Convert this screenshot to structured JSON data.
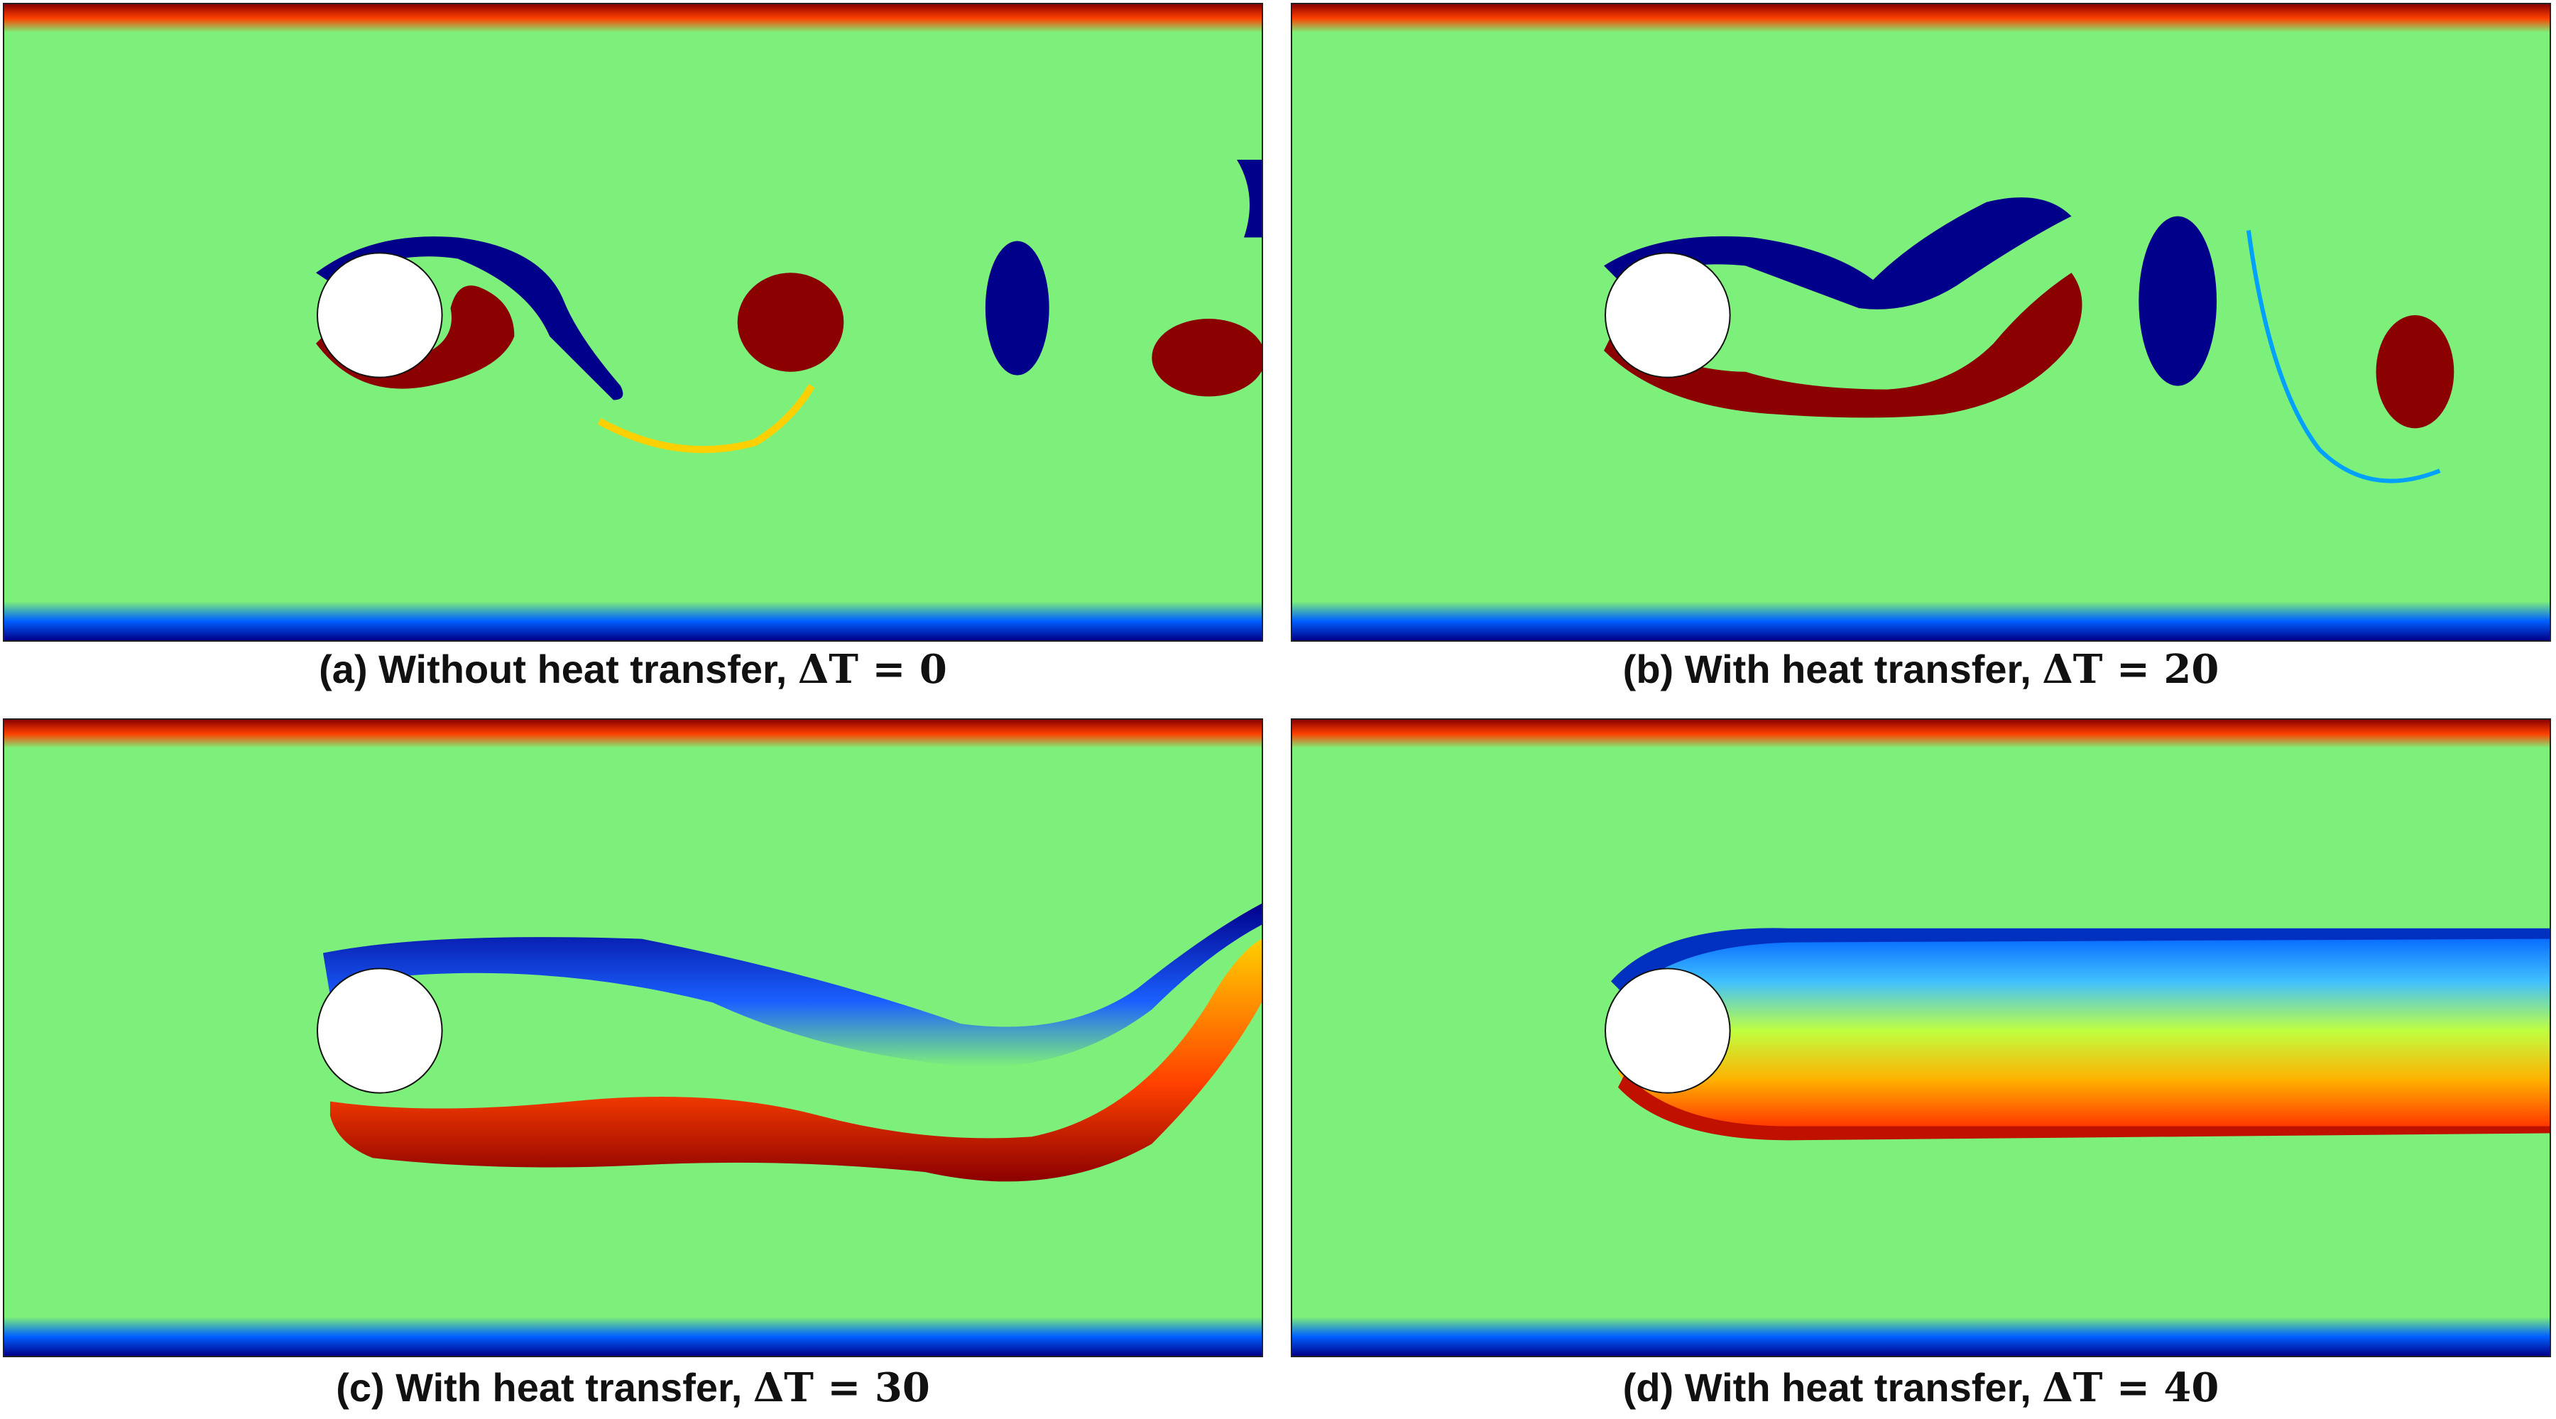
{
  "panels": [
    {
      "id": "a",
      "label": "(a)",
      "caption_text": "Without heat transfer,",
      "math": "ΔT = 0"
    },
    {
      "id": "b",
      "label": "(b)",
      "caption_text": "With heat transfer,",
      "math": "ΔT = 20"
    },
    {
      "id": "c",
      "label": "(c)",
      "caption_text": "With heat transfer,",
      "math": "ΔT = 30"
    },
    {
      "id": "d",
      "label": "(d)",
      "caption_text": "With heat transfer,",
      "math": "ΔT = 40"
    }
  ],
  "colors": {
    "background_field": "#7cf07a",
    "positive_vortex": "#8b0000",
    "negative_vortex": "#00008b",
    "cylinder": "#ffffff"
  }
}
